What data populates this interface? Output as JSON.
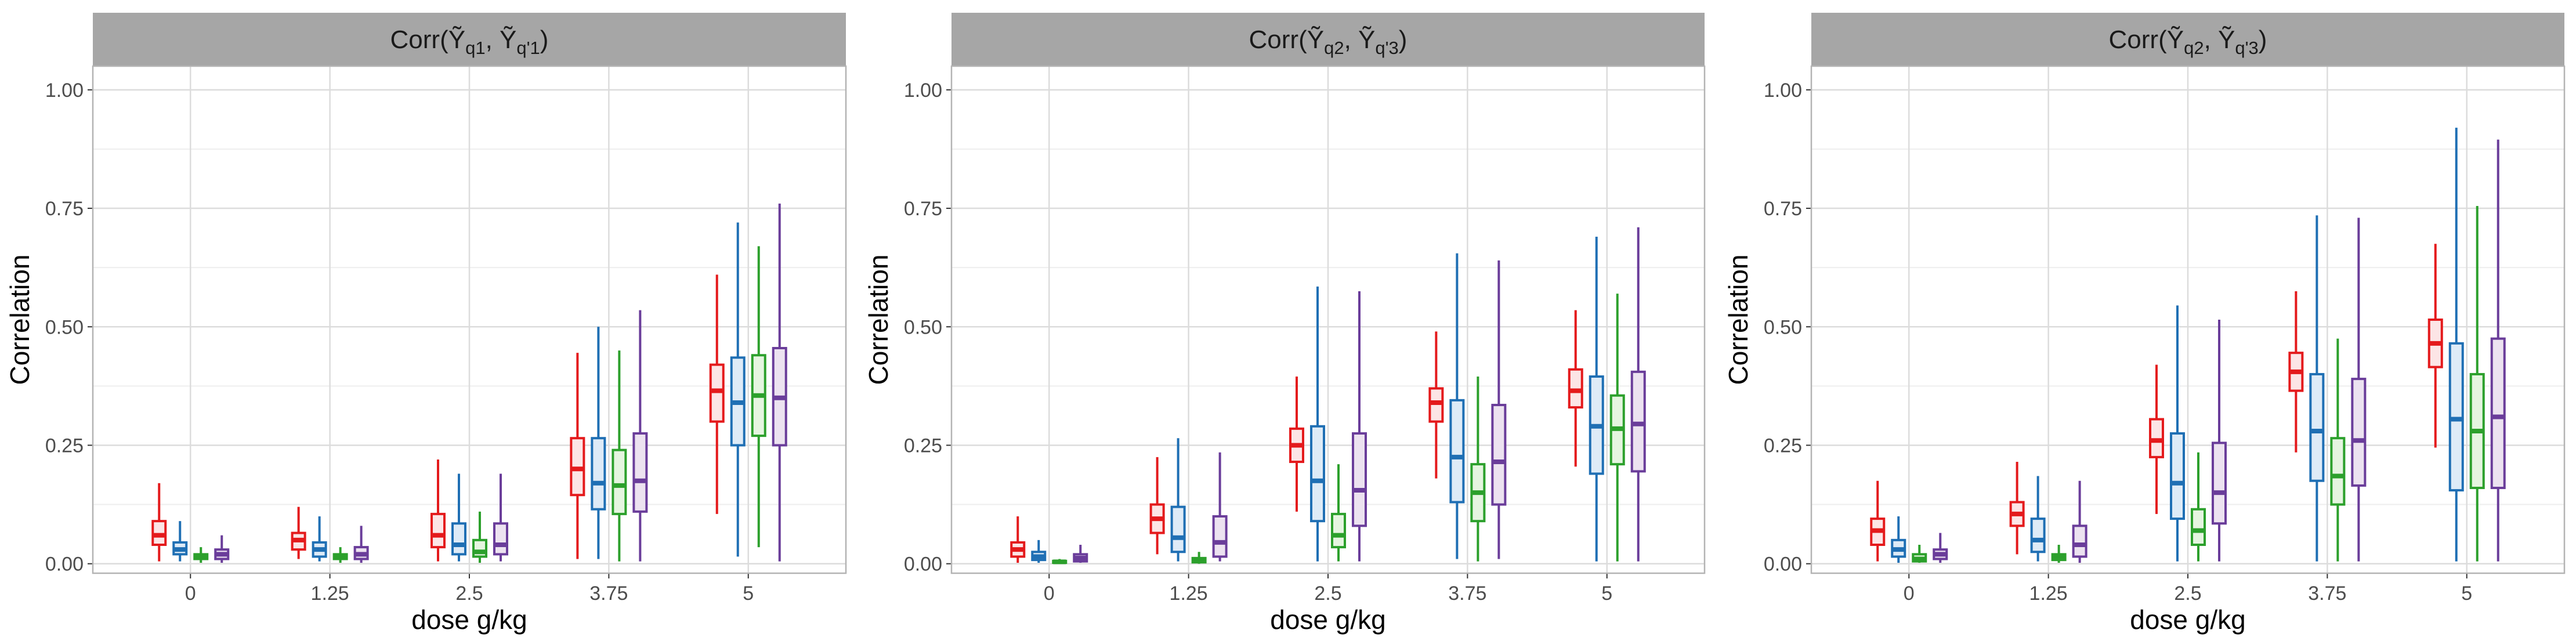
{
  "chart_data": {
    "type": "boxplot",
    "xlabel": "dose g/kg",
    "ylabel": "Correlation",
    "x_categories": [
      "0",
      "1.25",
      "2.5",
      "3.75",
      "5"
    ],
    "y_ticks": [
      "0.00",
      "0.25",
      "0.50",
      "0.75",
      "1.00"
    ],
    "ylim": [
      -0.02,
      1.05
    ],
    "grid": true,
    "legend": "none",
    "colors": {
      "strip_bg": "#a6a6a6",
      "panel_border": "#b3b3b3",
      "grid_major": "#dcdcdc",
      "grid_minor": "#eeeeee"
    },
    "series": [
      {
        "color": "#e41a1c",
        "fill": "#fce5e6"
      },
      {
        "color": "#1f6fb4",
        "fill": "#deebf7"
      },
      {
        "color": "#2ca02c",
        "fill": "#e5f5e0"
      },
      {
        "color": "#6a3d9a",
        "fill": "#ece2f0"
      }
    ],
    "panels": [
      {
        "title": "Corr(Ỹq1, Ỹq'1)",
        "title_parts": {
          "prefix": "Corr(",
          "a": "Ỹ",
          "a_sub": "q1",
          "sep": ", ",
          "b": "Ỹ",
          "b_sub": "q'1",
          "suffix": ")"
        },
        "boxes": [
          [
            [
              0.005,
              0.04,
              0.06,
              0.09,
              0.17
            ],
            [
              0.005,
              0.02,
              0.03,
              0.045,
              0.09
            ],
            [
              0.002,
              0.01,
              0.015,
              0.02,
              0.035
            ],
            [
              0.002,
              0.01,
              0.02,
              0.03,
              0.06
            ]
          ],
          [
            [
              0.01,
              0.03,
              0.05,
              0.065,
              0.12
            ],
            [
              0.005,
              0.015,
              0.03,
              0.045,
              0.1
            ],
            [
              0.002,
              0.01,
              0.015,
              0.02,
              0.035
            ],
            [
              0.002,
              0.01,
              0.02,
              0.035,
              0.08
            ]
          ],
          [
            [
              0.005,
              0.035,
              0.06,
              0.105,
              0.22
            ],
            [
              0.005,
              0.02,
              0.04,
              0.085,
              0.19
            ],
            [
              0.002,
              0.015,
              0.025,
              0.05,
              0.11
            ],
            [
              0.005,
              0.02,
              0.04,
              0.085,
              0.19
            ]
          ],
          [
            [
              0.01,
              0.145,
              0.2,
              0.265,
              0.445
            ],
            [
              0.01,
              0.115,
              0.17,
              0.265,
              0.5
            ],
            [
              0.005,
              0.105,
              0.165,
              0.24,
              0.45
            ],
            [
              0.005,
              0.11,
              0.175,
              0.275,
              0.535
            ]
          ],
          [
            [
              0.105,
              0.3,
              0.365,
              0.42,
              0.61
            ],
            [
              0.015,
              0.25,
              0.34,
              0.435,
              0.72
            ],
            [
              0.035,
              0.27,
              0.355,
              0.44,
              0.67
            ],
            [
              0.005,
              0.25,
              0.35,
              0.455,
              0.76
            ]
          ]
        ]
      },
      {
        "title": "Corr(Ỹq2, Ỹq'3)",
        "title_parts": {
          "prefix": "Corr(",
          "a": "Ỹ",
          "a_sub": "q2",
          "sep": ", ",
          "b": "Ỹ",
          "b_sub": "q'3",
          "suffix": ")"
        },
        "boxes": [
          [
            [
              0.002,
              0.015,
              0.03,
              0.045,
              0.1
            ],
            [
              0.002,
              0.008,
              0.015,
              0.025,
              0.05
            ],
            [
              0.0,
              0.002,
              0.004,
              0.006,
              0.01
            ],
            [
              0.002,
              0.005,
              0.012,
              0.02,
              0.04
            ]
          ],
          [
            [
              0.02,
              0.065,
              0.095,
              0.125,
              0.225
            ],
            [
              0.005,
              0.025,
              0.055,
              0.12,
              0.265
            ],
            [
              0.0,
              0.003,
              0.007,
              0.012,
              0.025
            ],
            [
              0.005,
              0.015,
              0.045,
              0.1,
              0.235
            ]
          ],
          [
            [
              0.11,
              0.215,
              0.25,
              0.285,
              0.395
            ],
            [
              0.005,
              0.09,
              0.175,
              0.29,
              0.585
            ],
            [
              0.005,
              0.035,
              0.06,
              0.105,
              0.21
            ],
            [
              0.005,
              0.08,
              0.155,
              0.275,
              0.575
            ]
          ],
          [
            [
              0.18,
              0.3,
              0.34,
              0.37,
              0.49
            ],
            [
              0.01,
              0.13,
              0.225,
              0.345,
              0.655
            ],
            [
              0.005,
              0.09,
              0.15,
              0.21,
              0.395
            ],
            [
              0.01,
              0.125,
              0.215,
              0.335,
              0.64
            ]
          ],
          [
            [
              0.205,
              0.33,
              0.365,
              0.41,
              0.535
            ],
            [
              0.005,
              0.19,
              0.29,
              0.395,
              0.69
            ],
            [
              0.005,
              0.21,
              0.285,
              0.355,
              0.57
            ],
            [
              0.005,
              0.195,
              0.295,
              0.405,
              0.71
            ]
          ]
        ]
      },
      {
        "title": "Corr(Ỹq2, Ỹq'3)",
        "title_parts": {
          "prefix": "Corr(",
          "a": "Ỹ",
          "a_sub": "q2",
          "sep": ", ",
          "b": "Ỹ",
          "b_sub": "q'3",
          "suffix": ")"
        },
        "boxes": [
          [
            [
              0.005,
              0.04,
              0.07,
              0.095,
              0.175
            ],
            [
              0.002,
              0.015,
              0.03,
              0.05,
              0.1
            ],
            [
              0.002,
              0.005,
              0.01,
              0.02,
              0.04
            ],
            [
              0.002,
              0.01,
              0.02,
              0.03,
              0.065
            ]
          ],
          [
            [
              0.02,
              0.08,
              0.105,
              0.13,
              0.215
            ],
            [
              0.005,
              0.025,
              0.05,
              0.095,
              0.185
            ],
            [
              0.002,
              0.008,
              0.015,
              0.02,
              0.04
            ],
            [
              0.002,
              0.015,
              0.04,
              0.08,
              0.175
            ]
          ],
          [
            [
              0.105,
              0.225,
              0.26,
              0.305,
              0.42
            ],
            [
              0.005,
              0.095,
              0.17,
              0.275,
              0.545
            ],
            [
              0.005,
              0.04,
              0.07,
              0.115,
              0.235
            ],
            [
              0.005,
              0.085,
              0.15,
              0.255,
              0.515
            ]
          ],
          [
            [
              0.235,
              0.365,
              0.405,
              0.445,
              0.575
            ],
            [
              0.005,
              0.175,
              0.28,
              0.4,
              0.735
            ],
            [
              0.005,
              0.125,
              0.185,
              0.265,
              0.475
            ],
            [
              0.005,
              0.165,
              0.26,
              0.39,
              0.73
            ]
          ],
          [
            [
              0.245,
              0.415,
              0.465,
              0.515,
              0.675
            ],
            [
              0.005,
              0.155,
              0.305,
              0.465,
              0.92
            ],
            [
              0.005,
              0.16,
              0.28,
              0.4,
              0.755
            ],
            [
              0.005,
              0.16,
              0.31,
              0.475,
              0.895
            ]
          ]
        ]
      }
    ]
  }
}
